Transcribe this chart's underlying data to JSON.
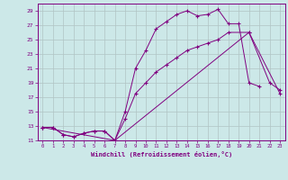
{
  "xlabel": "Windchill (Refroidissement éolien,°C)",
  "bg_color": "#cce8e8",
  "line_color": "#800080",
  "grid_color": "#b0c4c4",
  "series1_x": [
    0,
    1,
    2,
    3,
    4,
    5,
    6,
    7,
    8,
    9,
    10,
    11,
    12,
    13,
    14,
    15,
    16,
    17,
    18,
    19,
    20,
    21,
    22,
    23
  ],
  "series1_y": [
    12.8,
    12.8,
    11.8,
    11.5,
    12.0,
    12.3,
    12.3,
    11.0,
    15.0,
    21.0,
    23.5,
    26.5,
    27.5,
    28.5,
    29.0,
    28.3,
    28.5,
    29.2,
    27.2,
    27.2,
    19.0,
    18.5,
    null,
    null
  ],
  "series2_x": [
    0,
    1,
    2,
    3,
    4,
    5,
    6,
    7,
    8,
    9,
    10,
    11,
    12,
    13,
    14,
    15,
    16,
    17,
    18,
    20,
    22,
    23
  ],
  "series2_y": [
    12.8,
    12.8,
    11.8,
    11.5,
    12.0,
    12.3,
    12.3,
    11.0,
    14.0,
    17.5,
    19.0,
    20.5,
    21.5,
    22.5,
    23.5,
    24.0,
    24.5,
    25.0,
    26.0,
    26.0,
    19.0,
    18.0
  ],
  "series3_x": [
    0,
    7,
    20,
    23
  ],
  "series3_y": [
    12.8,
    11.0,
    26.0,
    17.5
  ],
  "xlim": [
    -0.5,
    23.5
  ],
  "ylim": [
    11,
    30
  ],
  "xticks": [
    0,
    1,
    2,
    3,
    4,
    5,
    6,
    7,
    8,
    9,
    10,
    11,
    12,
    13,
    14,
    15,
    16,
    17,
    18,
    19,
    20,
    21,
    22,
    23
  ],
  "yticks": [
    11,
    13,
    15,
    17,
    19,
    21,
    23,
    25,
    27,
    29
  ]
}
